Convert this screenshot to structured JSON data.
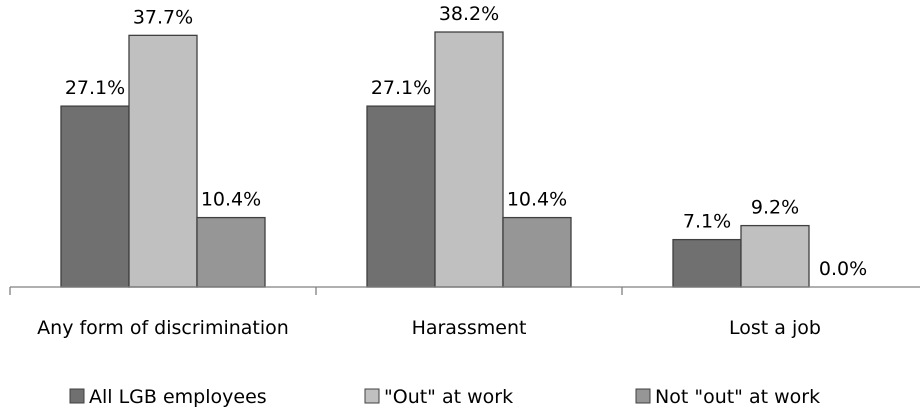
{
  "chart_data": {
    "type": "bar",
    "categories": [
      "Any form of discrimination",
      "Harassment",
      "Lost a job"
    ],
    "series": [
      {
        "name": "All LGB employees",
        "values": [
          27.1,
          27.1,
          7.1
        ],
        "labels": [
          "27.1%",
          "27.1%",
          "7.1%"
        ],
        "color": "#707070"
      },
      {
        "name": "\"Out\" at work",
        "values": [
          37.7,
          38.2,
          9.2
        ],
        "labels": [
          "37.7%",
          "38.2%",
          "9.2%"
        ],
        "color": "#c0c0c0"
      },
      {
        "name": "Not \"out\" at work",
        "values": [
          10.4,
          10.4,
          0.0
        ],
        "labels": [
          "10.4%",
          "10.4%",
          "0.0%"
        ],
        "color": "#969696"
      }
    ],
    "ylim": [
      0,
      40
    ],
    "legend": "bottom",
    "grid": false
  }
}
